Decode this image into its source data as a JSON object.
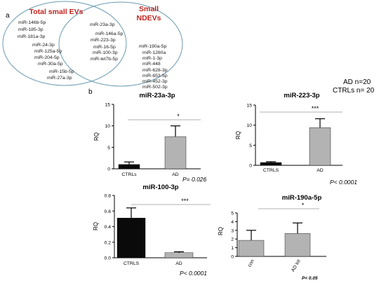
{
  "figure": {
    "panel_a_label": "a",
    "panel_b_label": "b",
    "cohort": [
      "AD n=20",
      "CTRLs n= 20"
    ]
  },
  "venn": {
    "left_title": "Total small EVs",
    "right_title": [
      "Small",
      "NDEVs"
    ],
    "title_color": "#c0241e",
    "circle_color": "#6a9bb0",
    "left_only": [
      "miR-146b-5p",
      "miR-185-3p",
      "miR-181a-3p",
      "miR-24-3p",
      "miR-125a-5p",
      "miR-204-5p",
      "miR-30a-5p",
      "miR-15b-5p",
      "miR-27a-3p"
    ],
    "shared": [
      "miR-23a-3p",
      "miR-146a-5p",
      "miR-223-3p",
      "miR-16-5p",
      "miR-100-3p",
      "miR-let7b-5p"
    ],
    "right_only": [
      "miR-190a-5p",
      "miR-1260a",
      "miR-1-3p",
      "miR-448",
      "miR-628-3p",
      "miR-653-5p",
      "miR-452-3p",
      "miR-502-3p"
    ]
  },
  "chart_data": [
    {
      "type": "bar",
      "title": "miR-23a-3p",
      "ylabel": "RQ",
      "ylim": [
        0,
        15
      ],
      "yticks": [
        "0",
        "5",
        "10",
        "15"
      ],
      "categories": [
        "CTRLs",
        "AD"
      ],
      "values": [
        1.0,
        7.5
      ],
      "errors": [
        0.6,
        2.5
      ],
      "colors": [
        "#0a0a0a",
        "#b3b3b3"
      ],
      "significance": "*",
      "pvalue": "P= 0.026",
      "rotate_labels": false
    },
    {
      "type": "bar",
      "title": "miR-223-3p",
      "ylabel": "RQ",
      "ylim": [
        0,
        15
      ],
      "yticks": [
        "0",
        "5",
        "10",
        "15"
      ],
      "categories": [
        "CTRLS",
        "AD"
      ],
      "values": [
        0.7,
        9.4
      ],
      "errors": [
        0.2,
        2.2
      ],
      "colors": [
        "#0a0a0a",
        "#b3b3b3"
      ],
      "significance": "***",
      "pvalue": "P< 0.0001",
      "rotate_labels": false
    },
    {
      "type": "bar",
      "title": "miR-100-3p",
      "ylabel": "RQ",
      "ylim": [
        0,
        0.8
      ],
      "yticks": [
        "0.0",
        "0.2",
        "0.4",
        "0.6",
        "0.8"
      ],
      "categories": [
        "CTRLS",
        "AD"
      ],
      "values": [
        0.51,
        0.065
      ],
      "errors": [
        0.13,
        0.012
      ],
      "colors": [
        "#0a0a0a",
        "#b3b3b3"
      ],
      "significance": "***",
      "pvalue": "P< 0.0001",
      "rotate_labels": false
    },
    {
      "type": "bar",
      "title": "miR-190a-5p",
      "ylabel": "RQ",
      "ylim": [
        0,
        5
      ],
      "yticks": [
        "0",
        "1",
        "2",
        "3",
        "4",
        "5"
      ],
      "categories": [
        "con",
        "AD tot"
      ],
      "values": [
        1.85,
        2.65
      ],
      "errors": [
        1.15,
        1.2
      ],
      "colors": [
        "#b3b3b3",
        "#b3b3b3"
      ],
      "significance": "*",
      "pvalue": "P< 0.05",
      "rotate_labels": true
    }
  ]
}
